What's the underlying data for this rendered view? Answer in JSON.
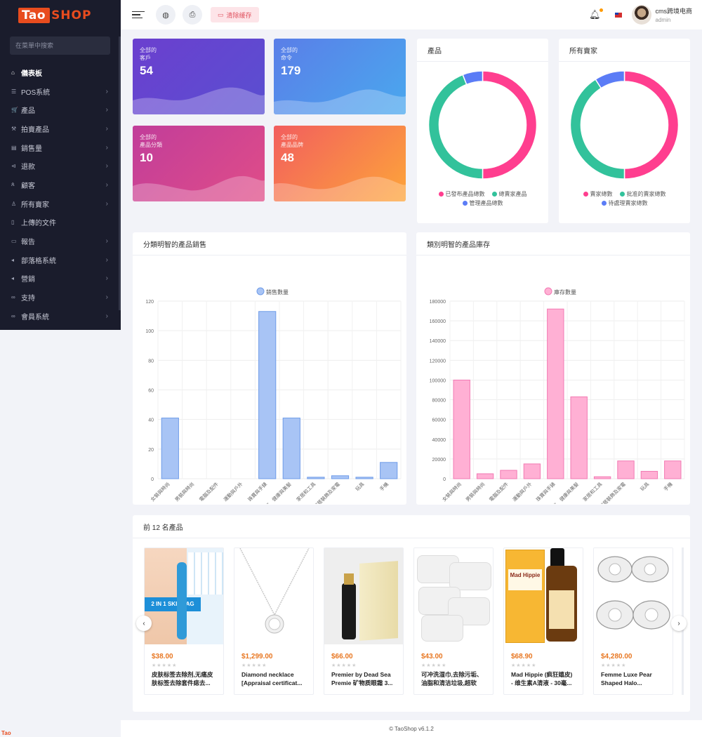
{
  "logo": {
    "part1": "Tao",
    "part2": "SHOP"
  },
  "sidebar": {
    "search_placeholder": "在菜單中搜索",
    "items": [
      {
        "label": "儀表板",
        "icon": "⌂"
      },
      {
        "label": "POS系統",
        "icon": "☰"
      },
      {
        "label": "產品",
        "icon": "🛒"
      },
      {
        "label": "拍賣產品",
        "icon": "⚒"
      },
      {
        "label": "銷售量",
        "icon": "▤"
      },
      {
        "label": "退款",
        "icon": "⊲"
      },
      {
        "label": "顧客",
        "icon": "ጰ"
      },
      {
        "label": "所有賣家",
        "icon": "♙"
      },
      {
        "label": "上傳的文件",
        "icon": "▯"
      },
      {
        "label": "報告",
        "icon": "▭"
      },
      {
        "label": "部落格系統",
        "icon": "◂"
      },
      {
        "label": "營銷",
        "icon": "◂"
      },
      {
        "label": "支持",
        "icon": "∞"
      },
      {
        "label": "會員系統",
        "icon": "∞"
      }
    ]
  },
  "header": {
    "clear_cache": "清除緩存",
    "user_name": "cms跨境电商",
    "user_role": "admin"
  },
  "stats": [
    {
      "label1": "全部的",
      "label2": "客戶",
      "value": "54"
    },
    {
      "label1": "全部的",
      "label2": "命令",
      "value": "179"
    },
    {
      "label1": "全部的",
      "label2": "產品分類",
      "value": "10"
    },
    {
      "label1": "全部的",
      "label2": "產品品牌",
      "value": "48"
    }
  ],
  "donut_products": {
    "title": "產品",
    "legend": [
      "已發布產品總數",
      "總賣家產品",
      "管理產品總數"
    ],
    "colors": [
      "#ff3e8f",
      "#32c29b",
      "#5b7cf6"
    ],
    "values": [
      50,
      44,
      6
    ]
  },
  "donut_sellers": {
    "title": "所有賣家",
    "legend": [
      "賣家總數",
      "批准的賣家總數",
      "待處理賣家總數"
    ],
    "colors": [
      "#ff3e8f",
      "#32c29b",
      "#5b7cf6"
    ],
    "values": [
      50,
      41,
      9
    ]
  },
  "chart_data": [
    {
      "type": "bar",
      "title": "分類明智的產品銷售",
      "series": [
        {
          "name": "銷售數量",
          "values": [
            41,
            0,
            0,
            0,
            113,
            41,
            1,
            2,
            1,
            11
          ]
        }
      ],
      "categories": [
        "女裝與時尚",
        "男裝與時尚",
        "電腦及配件",
        "運動與戶外",
        "珠寶與手錶",
        "美容、健康與美髮",
        "家居和工具",
        "家居裝飾及家電",
        "玩具",
        "手機"
      ],
      "ylim": [
        0,
        120
      ],
      "yticks": [
        0,
        20,
        40,
        60,
        80,
        100,
        120
      ],
      "color": "#a8c4f5",
      "stroke": "#6f9ce8"
    },
    {
      "type": "bar",
      "title": "類別明智的產品庫存",
      "series": [
        {
          "name": "庫存數量",
          "values": [
            100000,
            5000,
            8500,
            15000,
            172000,
            83000,
            2000,
            18000,
            7500,
            18000
          ]
        }
      ],
      "categories": [
        "女裝與時尚",
        "男裝與時尚",
        "電腦及配件",
        "運動與戶外",
        "珠寶與手錶",
        "美容、健康與美髮",
        "家居和工具",
        "家居裝飾及家電",
        "玩具",
        "手機"
      ],
      "ylim": [
        0,
        180000
      ],
      "yticks": [
        0,
        20000,
        40000,
        60000,
        80000,
        100000,
        120000,
        140000,
        160000,
        180000
      ],
      "color": "#ffb0d4",
      "stroke": "#f27ab3"
    }
  ],
  "top_products": {
    "title": "前 12 名產品",
    "items": [
      {
        "price": "$38.00",
        "name": "皮肤标签去除剂,无痛皮肤标签去除套件痣去..."
      },
      {
        "price": "$1,299.00",
        "name": "Diamond necklace [Appraisal certificat..."
      },
      {
        "price": "$66.00",
        "name": "Premier by Dead Sea Premie 矿物质眼霜 3..."
      },
      {
        "price": "$43.00",
        "name": "可冲洗湿巾,去除污垢、油脂和清洁垃圾,超软棉..."
      },
      {
        "price": "$68.90",
        "name": "Mad Hippie (疯狂嬉皮) - 维生素A清液 - 30毫..."
      },
      {
        "price": "$4,280.00",
        "name": "Femme Luxe Pear Shaped Halo..."
      }
    ],
    "stars": "★★★★★"
  },
  "footer": "© TaoShop v6.1.2",
  "corner_badge": "Tao"
}
